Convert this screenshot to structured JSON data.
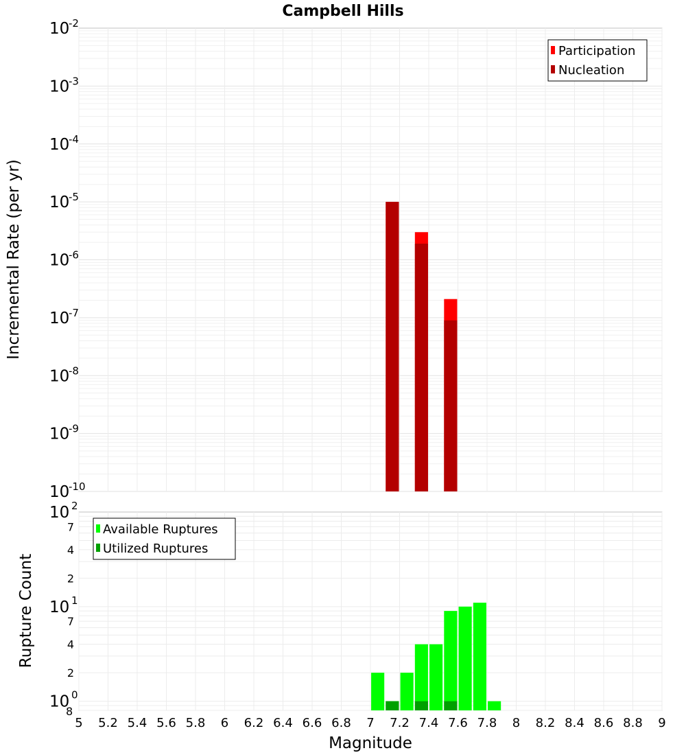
{
  "chart_data": {
    "title": "Campbell Hills",
    "xlabel": "Magnitude",
    "xlim": [
      5,
      9
    ],
    "xticks": [
      "5",
      "5.2",
      "5.4",
      "5.6",
      "5.8",
      "6",
      "6.2",
      "6.4",
      "6.6",
      "6.8",
      "7",
      "7.2",
      "7.4",
      "7.6",
      "7.8",
      "8",
      "8.2",
      "8.4",
      "8.6",
      "8.8",
      "9"
    ],
    "top": {
      "type": "bar",
      "ylabel": "Incremental Rate (per yr)",
      "yscale": "log",
      "ylim_exp": [
        -10,
        -2
      ],
      "ytick_exponents": [
        "-10",
        "-9",
        "-8",
        "-7",
        "-6",
        "-5",
        "-4",
        "-3",
        "-2"
      ],
      "bar_width": 0.09,
      "legend": {
        "position": "top-right",
        "entries": [
          "Participation",
          "Nucleation"
        ]
      },
      "series": [
        {
          "name": "Participation",
          "color": "#ff0000",
          "x": [
            7.15,
            7.35,
            7.55
          ],
          "values": [
            1e-05,
            3e-06,
            2.1e-07
          ]
        },
        {
          "name": "Nucleation",
          "color": "#b30000",
          "x": [
            7.15,
            7.35,
            7.55
          ],
          "values": [
            1e-05,
            1.9e-06,
            9e-08
          ]
        }
      ]
    },
    "bottom": {
      "type": "bar",
      "ylabel": "Rupture Count",
      "yscale": "log",
      "ylim": [
        0.8,
        100
      ],
      "ytick_major": [
        {
          "value": 1,
          "base": "10",
          "exp": "0"
        },
        {
          "value": 10,
          "base": "10",
          "exp": "1"
        },
        {
          "value": 100,
          "base": "10",
          "exp": "2"
        }
      ],
      "ytick_minor": [
        {
          "value": 2,
          "label": "2"
        },
        {
          "value": 4,
          "label": "4"
        },
        {
          "value": 7,
          "label": "7"
        },
        {
          "value": 20,
          "label": "2"
        },
        {
          "value": 40,
          "label": "4"
        },
        {
          "value": 70,
          "label": "7"
        }
      ],
      "ymin_label": "8",
      "bar_width": 0.09,
      "legend": {
        "position": "top-left",
        "entries": [
          "Available Ruptures",
          "Utilized Ruptures"
        ]
      },
      "series": [
        {
          "name": "Available Ruptures",
          "color": "#00ff00",
          "x": [
            7.05,
            7.15,
            7.25,
            7.35,
            7.45,
            7.55,
            7.65,
            7.75,
            7.85
          ],
          "values": [
            2,
            1,
            2,
            4,
            4,
            9,
            10,
            11,
            1
          ]
        },
        {
          "name": "Utilized Ruptures",
          "color": "#00a000",
          "x": [
            7.15,
            7.35,
            7.55
          ],
          "values": [
            1,
            1,
            1
          ]
        }
      ]
    }
  }
}
